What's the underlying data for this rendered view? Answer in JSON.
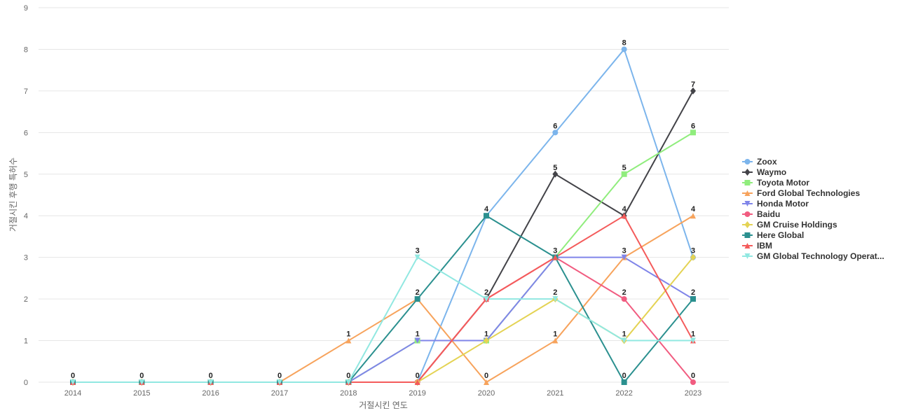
{
  "chart_data": {
    "type": "line",
    "xlabel": "거절시킨 연도",
    "ylabel": "거절시킨 후행 특허수",
    "ylim": [
      0,
      9
    ],
    "yticks": [
      0,
      1,
      2,
      3,
      4,
      5,
      6,
      7,
      8,
      9
    ],
    "categories": [
      "2014",
      "2015",
      "2016",
      "2017",
      "2018",
      "2019",
      "2020",
      "2021",
      "2022",
      "2023"
    ],
    "grid": true,
    "legend_position": "right",
    "series": [
      {
        "name": "Zoox",
        "color": "#7cb5ec",
        "marker": "circle",
        "values": [
          0,
          0,
          0,
          0,
          0,
          0,
          4,
          6,
          8,
          3
        ]
      },
      {
        "name": "Waymo",
        "color": "#434348",
        "marker": "diamond",
        "values": [
          0,
          0,
          0,
          0,
          0,
          0,
          2,
          5,
          4,
          7
        ]
      },
      {
        "name": "Toyota Motor",
        "color": "#90ed7d",
        "marker": "square",
        "values": [
          0,
          0,
          0,
          0,
          0,
          1,
          1,
          3,
          5,
          6
        ]
      },
      {
        "name": "Ford Global Technologies",
        "color": "#f7a35c",
        "marker": "triangle",
        "values": [
          0,
          0,
          0,
          0,
          1,
          2,
          0,
          1,
          3,
          4
        ]
      },
      {
        "name": "Honda Motor",
        "color": "#8085e9",
        "marker": "triangle-down",
        "values": [
          0,
          0,
          0,
          0,
          0,
          1,
          1,
          3,
          3,
          2
        ]
      },
      {
        "name": "Baidu",
        "color": "#f15c80",
        "marker": "circle",
        "values": [
          0,
          0,
          0,
          0,
          0,
          0,
          2,
          3,
          2,
          0
        ]
      },
      {
        "name": "GM Cruise Holdings",
        "color": "#e4d354",
        "marker": "diamond",
        "values": [
          0,
          0,
          0,
          0,
          0,
          0,
          1,
          2,
          1,
          3
        ]
      },
      {
        "name": "Here Global",
        "color": "#2b908f",
        "marker": "square",
        "values": [
          0,
          0,
          0,
          0,
          0,
          2,
          4,
          3,
          0,
          2
        ]
      },
      {
        "name": "IBM",
        "color": "#f45b5b",
        "marker": "triangle",
        "values": [
          0,
          0,
          0,
          0,
          0,
          0,
          2,
          3,
          4,
          1
        ]
      },
      {
        "name": "GM Global Technology Operat...",
        "color": "#91e8e1",
        "marker": "triangle-down",
        "values": [
          0,
          0,
          0,
          0,
          0,
          3,
          2,
          2,
          1,
          1
        ]
      }
    ],
    "data_labels": [
      {
        "x": "2014",
        "text": "0",
        "series": "GM Global Technology Operat..."
      },
      {
        "x": "2015",
        "text": "0",
        "series": "GM Global Technology Operat..."
      },
      {
        "x": "2016",
        "text": "0",
        "series": "GM Global Technology Operat..."
      },
      {
        "x": "2017",
        "text": "0",
        "series": "GM Global Technology Operat..."
      },
      {
        "x": "2018",
        "text": "0",
        "series": "GM Global Technology Operat..."
      },
      {
        "x": "2018",
        "text": "1",
        "series": "Ford Global Technologies"
      },
      {
        "x": "2019",
        "text": "0",
        "series": "IBM"
      },
      {
        "x": "2019",
        "text": "1",
        "series": "Honda Motor"
      },
      {
        "x": "2019",
        "text": "2",
        "series": "Here Global"
      },
      {
        "x": "2019",
        "text": "3",
        "series": "GM Global Technology Operat..."
      },
      {
        "x": "2020",
        "text": "0",
        "series": "Ford Global Technologies"
      },
      {
        "x": "2020",
        "text": "1",
        "series": "GM Cruise Holdings"
      },
      {
        "x": "2020",
        "text": "2",
        "series": "IBM"
      },
      {
        "x": "2020",
        "text": "4",
        "series": "Here Global"
      },
      {
        "x": "2021",
        "text": "1",
        "series": "Ford Global Technologies"
      },
      {
        "x": "2021",
        "text": "2",
        "series": "GM Global Technology Operat..."
      },
      {
        "x": "2021",
        "text": "3",
        "series": "Here Global"
      },
      {
        "x": "2021",
        "text": "5",
        "series": "Waymo"
      },
      {
        "x": "2021",
        "text": "6",
        "series": "Zoox"
      },
      {
        "x": "2022",
        "text": "0",
        "series": "Here Global"
      },
      {
        "x": "2022",
        "text": "1",
        "series": "GM Global Technology Operat..."
      },
      {
        "x": "2022",
        "text": "2",
        "series": "Baidu"
      },
      {
        "x": "2022",
        "text": "3",
        "series": "Honda Motor"
      },
      {
        "x": "2022",
        "text": "4",
        "series": "IBM"
      },
      {
        "x": "2022",
        "text": "5",
        "series": "Toyota Motor"
      },
      {
        "x": "2022",
        "text": "8",
        "series": "Zoox"
      },
      {
        "x": "2023",
        "text": "0",
        "series": "Baidu"
      },
      {
        "x": "2023",
        "text": "1",
        "series": "GM Global Technology Operat..."
      },
      {
        "x": "2023",
        "text": "2",
        "series": "Here Global"
      },
      {
        "x": "2023",
        "text": "3",
        "series": "Zoox"
      },
      {
        "x": "2023",
        "text": "4",
        "series": "Ford Global Technologies"
      },
      {
        "x": "2023",
        "text": "6",
        "series": "Toyota Motor"
      },
      {
        "x": "2023",
        "text": "7",
        "series": "Waymo"
      }
    ]
  }
}
